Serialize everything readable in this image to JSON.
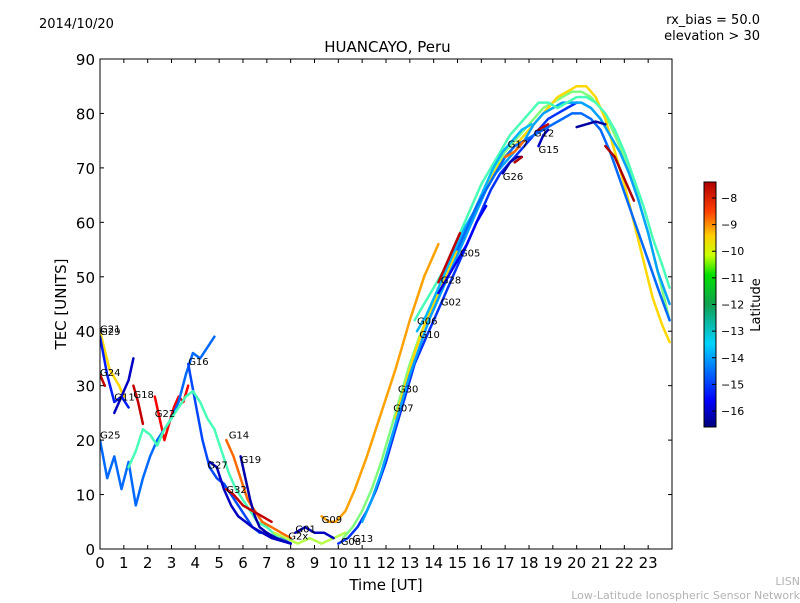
{
  "header": {
    "date": "2014/10/20",
    "meta_line1": "rx_bias = 50.0",
    "meta_line2": "elevation > 30"
  },
  "footer": {
    "credit_line1": "LISN",
    "credit_line2": "Low-Latitude Ionospheric Sensor Network"
  },
  "chart_data": {
    "type": "line",
    "title": "HUANCAYO, Peru",
    "xlabel": "Time [UT]",
    "ylabel": "TEC [UNITS]",
    "xlim": [
      0,
      24
    ],
    "ylim": [
      0,
      90
    ],
    "xticks": [
      "0",
      "1",
      "2",
      "3",
      "4",
      "5",
      "6",
      "7",
      "8",
      "9",
      "10",
      "11",
      "12",
      "13",
      "14",
      "15",
      "16",
      "17",
      "18",
      "19",
      "20",
      "21",
      "22",
      "23"
    ],
    "yticks": [
      "0",
      "10",
      "20",
      "30",
      "40",
      "50",
      "60",
      "70",
      "80",
      "90"
    ],
    "grid": false,
    "colorbar": {
      "label": "Latitude",
      "range": [
        -16.6,
        -7.4
      ],
      "ticks": [
        "−8",
        "−9",
        "−10",
        "−11",
        "−12",
        "−13",
        "−14",
        "−15",
        "−16"
      ],
      "tick_values": [
        -8,
        -9,
        -10,
        -11,
        -12,
        -13,
        -14,
        -15,
        -16
      ]
    },
    "series": [
      {
        "name": "G21",
        "lat": -10.5,
        "label_at": [
          0,
          40.5
        ],
        "x": [
          0,
          0.4,
          0.8,
          1.0
        ],
        "y": [
          40,
          33,
          30,
          28
        ]
      },
      {
        "name": "G29",
        "lat": -15.2,
        "label_at": [
          0,
          40
        ],
        "x": [
          0,
          0.3,
          0.6,
          0.9,
          1.2
        ],
        "y": [
          39,
          32,
          27,
          28,
          26
        ]
      },
      {
        "name": "G24",
        "lat": -8,
        "label_at": [
          0,
          32.5
        ],
        "x": [
          0,
          0.2
        ],
        "y": [
          32,
          30
        ]
      },
      {
        "name": "G11",
        "lat": -16,
        "label_at": [
          0.6,
          28
        ],
        "x": [
          0.6,
          0.8,
          1.0,
          1.2,
          1.4
        ],
        "y": [
          25,
          27,
          29,
          31,
          35
        ]
      },
      {
        "name": "G18",
        "lat": -8,
        "label_at": [
          1.4,
          28.5
        ],
        "x": [
          1.4,
          1.6,
          1.8
        ],
        "y": [
          30,
          27,
          23
        ]
      },
      {
        "name": "G22",
        "lat": -8.5,
        "label_at": [
          2.3,
          25
        ],
        "x": [
          2.3,
          2.5,
          2.7,
          2.9,
          3.1,
          3.3,
          3.5,
          3.7
        ],
        "y": [
          28,
          24,
          20,
          23,
          26,
          28,
          27,
          30
        ]
      },
      {
        "name": "G25",
        "lat": -14.5,
        "label_at": [
          0,
          21
        ],
        "x": [
          0,
          0.3,
          0.6,
          0.9,
          1.2,
          1.5,
          1.8,
          2.1,
          2.4,
          2.7,
          3.0,
          3.3,
          3.6,
          3.9,
          4.2,
          4.5,
          4.8
        ],
        "y": [
          20,
          13,
          17,
          11,
          16,
          8,
          13,
          17,
          20,
          22,
          24,
          27,
          32,
          36,
          35,
          37,
          39
        ]
      },
      {
        "name": "G16",
        "lat": -14.8,
        "label_at": [
          3.7,
          34.5
        ],
        "x": [
          3.7,
          4.0,
          4.3,
          4.6,
          4.9,
          5.2,
          5.5,
          5.8,
          6.1,
          6.4,
          6.7,
          7.0,
          7.3,
          7.6,
          8.0
        ],
        "y": [
          34,
          27,
          20,
          15,
          13,
          12,
          10,
          8,
          6,
          4,
          3,
          3,
          2,
          2,
          1
        ]
      },
      {
        "name": "G26x",
        "lat": -12.5,
        "label_at": [
          0,
          0
        ],
        "hide_label": true,
        "x": [
          1.2,
          1.5,
          1.8,
          2.1,
          2.4,
          2.7,
          3.0,
          3.3,
          3.6,
          3.9,
          4.2,
          4.5,
          4.8,
          5.1,
          5.4,
          5.7,
          6.0,
          6.3,
          6.6,
          7.0,
          7.5,
          8.0
        ],
        "y": [
          15,
          18,
          22,
          21,
          19,
          22,
          24,
          26,
          28,
          29,
          27,
          24,
          22,
          18,
          14,
          11,
          9,
          7,
          5,
          4,
          2,
          1
        ]
      },
      {
        "name": "G14",
        "lat": -9.5,
        "label_at": [
          5.4,
          21
        ],
        "x": [
          5.3,
          5.6,
          5.9,
          6.2,
          6.5,
          6.8,
          7.2,
          7.6,
          8.0
        ],
        "y": [
          20,
          17,
          13,
          9,
          7,
          5,
          4,
          3,
          2
        ]
      },
      {
        "name": "G19",
        "lat": -16.2,
        "label_at": [
          5.9,
          16.5
        ],
        "x": [
          5.9,
          6.1,
          6.3,
          6.5,
          6.7,
          7.0,
          7.4,
          8.0
        ],
        "y": [
          17,
          13,
          9,
          6,
          4,
          3,
          2,
          1
        ]
      },
      {
        "name": "G27",
        "lat": -16,
        "label_at": [
          4.5,
          15.5
        ],
        "x": [
          4.6,
          4.9,
          5.2,
          5.5,
          5.8,
          6.1,
          6.4,
          6.8,
          7.2,
          8.0
        ],
        "y": [
          16,
          15,
          11,
          8,
          6,
          5,
          4,
          3,
          2,
          1
        ]
      },
      {
        "name": "G32",
        "lat": -8,
        "label_at": [
          5.3,
          11
        ],
        "x": [
          5.3,
          5.6,
          6.0,
          6.4,
          6.8,
          7.2
        ],
        "y": [
          11,
          10,
          8,
          7,
          6,
          5
        ]
      },
      {
        "name": "G2x",
        "lat": -11.5,
        "label_at": [
          7.9,
          2.5
        ],
        "x": [
          7.3,
          7.8,
          8.3,
          8.8,
          9.3,
          9.8,
          10.3
        ],
        "y": [
          3,
          2,
          1,
          2,
          1,
          2,
          3
        ]
      },
      {
        "name": "G01",
        "lat": -16,
        "label_at": [
          8.2,
          3.8
        ],
        "x": [
          8.2,
          8.6,
          9.0,
          9.4,
          9.8
        ],
        "y": [
          3,
          4,
          3,
          3,
          2
        ]
      },
      {
        "name": "G09",
        "lat": -10,
        "label_at": [
          9.3,
          5.5
        ],
        "x": [
          9.3,
          9.6,
          9.9,
          10.3,
          10.7,
          11.2,
          11.8,
          12.4,
          13.0,
          13.6,
          14.2
        ],
        "y": [
          6,
          5,
          5,
          7,
          11,
          17,
          25,
          33,
          42,
          50,
          56
        ]
      },
      {
        "name": "G08",
        "lat": -15,
        "label_at": [
          10.1,
          1.5
        ],
        "x": [
          10.0,
          10.4,
          10.8,
          11.2,
          11.6,
          12.0,
          12.4,
          12.8,
          13.2,
          13.6,
          14.0,
          14.4,
          14.8,
          15.2,
          15.6,
          16.0,
          16.4,
          16.8,
          17.2,
          17.6,
          18.0,
          18.4,
          18.8,
          19.2,
          19.6,
          20.0
        ],
        "y": [
          1,
          2,
          4,
          7,
          11,
          16,
          22,
          28,
          34,
          38,
          42,
          46,
          50,
          54,
          58,
          62,
          66,
          69,
          71,
          73,
          75,
          77,
          79,
          80,
          81,
          82
        ]
      },
      {
        "name": "G13",
        "lat": -12,
        "label_at": [
          10.6,
          2
        ],
        "x": [
          10.2,
          10.6,
          11.0,
          11.4,
          11.8,
          12.2,
          12.6,
          13.0,
          13.4,
          13.8,
          14.2,
          14.6,
          15.0,
          15.4,
          15.8,
          16.2,
          16.6,
          17.0,
          17.4,
          17.8,
          18.2,
          18.6,
          19.0,
          19.4,
          19.8,
          20.2,
          20.6,
          21.0,
          21.4,
          21.8,
          22.2,
          22.6,
          23.0,
          23.4,
          23.9
        ],
        "y": [
          2,
          4,
          7,
          11,
          16,
          22,
          28,
          34,
          39,
          43,
          47,
          51,
          55,
          59,
          63,
          67,
          70,
          73,
          75,
          77,
          79,
          81,
          82,
          83,
          84,
          84,
          83,
          81,
          78,
          74,
          70,
          64,
          58,
          51,
          42
        ]
      },
      {
        "name": "G30",
        "lat": -10.5,
        "label_at": [
          12.5,
          29.5
        ],
        "x": [
          12.4,
          12.8,
          13.2,
          13.6,
          14.0,
          14.4,
          14.8,
          15.2,
          15.6,
          16.0,
          16.4,
          16.8,
          17.2,
          17.6,
          18.0,
          18.4,
          18.8,
          19.2,
          19.6,
          20.0,
          20.4,
          20.8,
          21.2,
          21.6,
          22.0,
          22.4,
          22.8,
          23.2,
          23.6,
          23.9
        ],
        "y": [
          24,
          30,
          36,
          41,
          45,
          49,
          53,
          57,
          61,
          65,
          68,
          71,
          73,
          75,
          77,
          79,
          81,
          83,
          84,
          85,
          85,
          83,
          79,
          73,
          67,
          60,
          53,
          46,
          41,
          38
        ]
      },
      {
        "name": "G07",
        "lat": -14,
        "label_at": [
          12.3,
          26
        ],
        "x": [
          11.0,
          11.4,
          11.8,
          12.2,
          12.6,
          13.0,
          13.4,
          13.8,
          14.2,
          14.6,
          15.0,
          15.4,
          15.8,
          16.2,
          16.6,
          17.0,
          17.4,
          17.8,
          18.2,
          18.6,
          19.0,
          19.4,
          19.8,
          20.2,
          20.6,
          21.0,
          21.4,
          21.8,
          22.2,
          22.6,
          23.0,
          23.4,
          23.9
        ],
        "y": [
          5,
          9,
          14,
          20,
          26,
          32,
          37,
          42,
          46,
          50,
          54,
          58,
          62,
          66,
          69,
          71,
          73,
          75,
          78,
          80,
          81,
          82,
          82,
          82,
          81,
          79,
          76,
          73,
          69,
          64,
          58,
          51,
          45
        ]
      },
      {
        "name": "G06",
        "lat": -12.5,
        "label_at": [
          13.3,
          42
        ],
        "x": [
          13.2,
          13.6,
          14.0,
          14.4,
          14.8,
          15.2,
          15.6,
          16.0,
          16.4,
          16.8,
          17.2,
          17.6,
          18.0,
          18.4,
          18.8,
          19.2,
          19.6,
          20.0,
          20.4,
          20.8,
          21.2,
          21.6,
          22.0,
          22.4,
          22.8,
          23.2,
          23.6,
          23.9
        ],
        "y": [
          42,
          45,
          48,
          51,
          55,
          59,
          63,
          67,
          70,
          73,
          76,
          78,
          80,
          82,
          82,
          81,
          82,
          83,
          83,
          82,
          80,
          77,
          73,
          68,
          63,
          57,
          52,
          48
        ]
      },
      {
        "name": "G10",
        "lat": -13.8,
        "label_at": [
          13.4,
          39.5
        ],
        "x": [
          13.3,
          13.7,
          14.1,
          14.5,
          14.9,
          15.3,
          15.7,
          16.1,
          16.5,
          16.9,
          17.3,
          17.7,
          18.1
        ],
        "y": [
          40,
          43,
          47,
          51,
          55,
          59,
          62,
          66,
          70,
          73,
          75,
          77,
          78
        ]
      },
      {
        "name": "G28",
        "lat": -8,
        "label_at": [
          14.3,
          49.5
        ],
        "x": [
          14.2,
          14.5,
          14.8,
          15.1
        ],
        "y": [
          49,
          52,
          55,
          58
        ]
      },
      {
        "name": "G02",
        "lat": -15.5,
        "label_at": [
          14.3,
          45.5
        ],
        "x": [
          14.2,
          14.6,
          15.0,
          15.4,
          15.8,
          16.2
        ],
        "y": [
          47,
          50,
          53,
          56,
          60,
          63
        ]
      },
      {
        "name": "G05",
        "lat": -14.5,
        "label_at": [
          15.1,
          54.5
        ],
        "x": [
          15.0,
          15.4,
          15.8,
          16.2,
          16.6,
          17.0,
          17.4,
          17.8,
          18.2,
          18.6,
          19.0,
          19.4,
          19.8,
          20.2,
          20.6,
          21.0,
          21.4,
          21.8,
          22.2,
          22.6,
          23.0,
          23.4,
          23.9
        ],
        "y": [
          55,
          59,
          63,
          66,
          69,
          72,
          74,
          75,
          76,
          77,
          78,
          79,
          80,
          80,
          79,
          77,
          73,
          68,
          63,
          58,
          53,
          48,
          42
        ]
      },
      {
        "name": "G17",
        "lat": -9.5,
        "label_at": [
          17.1,
          74.5
        ],
        "x": [
          17.0,
          17.4,
          17.8
        ],
        "y": [
          72,
          73,
          75
        ]
      },
      {
        "name": "G12",
        "lat": -8,
        "label_at": [
          18.2,
          76.5
        ],
        "x": [
          18.4,
          18.8
        ],
        "y": [
          77,
          78
        ]
      },
      {
        "name": "G15",
        "lat": -16,
        "label_at": [
          18.4,
          73.5
        ],
        "x": [
          18.4,
          18.6,
          18.8
        ],
        "y": [
          74,
          76,
          77
        ]
      },
      {
        "name": "G26",
        "lat": -16.2,
        "label_at": [
          16.9,
          68.5
        ],
        "x": [
          16.9,
          17.2,
          17.5,
          17.7
        ],
        "y": [
          69,
          71,
          72,
          72
        ]
      },
      {
        "name": "G26r",
        "lat": -7.8,
        "label_at": [
          0,
          0
        ],
        "hide_label": true,
        "x": [
          17.4,
          17.7
        ],
        "y": [
          71,
          72
        ]
      },
      {
        "name": "Gblue",
        "lat": -16.3,
        "label_at": [
          0,
          0
        ],
        "hide_label": true,
        "x": [
          20.0,
          20.4,
          20.8,
          21.2
        ],
        "y": [
          77.5,
          78,
          78.5,
          78
        ]
      },
      {
        "name": "Gred",
        "lat": -7.8,
        "label_at": [
          0,
          0
        ],
        "hide_label": true,
        "x": [
          21.2,
          21.6,
          22.0,
          22.4
        ],
        "y": [
          74,
          72,
          68,
          64
        ]
      }
    ]
  }
}
